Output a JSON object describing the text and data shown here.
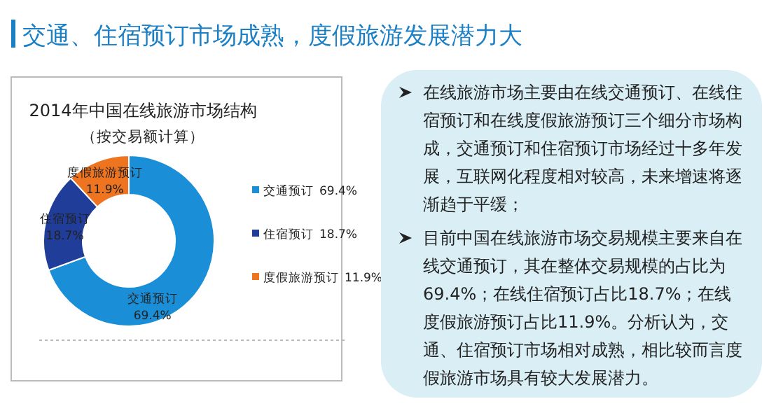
{
  "chart_data": {
    "type": "donut",
    "title": "交通、住宿预订市场成熟，度假旅游发展潜力大",
    "subtitle": "2014年中国在线旅游市场结构",
    "categories": [
      "交通预订",
      "住宿预订",
      "度假旅游预订"
    ],
    "values": [
      69.4,
      18.7,
      11.9
    ],
    "value_labels": [
      "69.4%",
      "18.7%",
      "11.9%"
    ],
    "colors": [
      "#1a8fd8",
      "#1f3d99",
      "#ee7420"
    ],
    "legend": "right",
    "annotations": [
      "（按交易额计算）",
      "在线旅游市场主要由在线交通预订、在线住宿预订和在线度假旅游预订三个细分市场构成，交通预订和住宿预订市场经过十多年发展，互联网化程度相对较高，未来增速将逐渐趋于平缓；",
      "目前中国在线旅游市场交易规模主要来自在线交通预订，其在整体交易规模的占比为69.4%；在线住宿预订占比18.7%；在线度假旅游预订占比11.9%。分析认为，交通、住宿预订市场相对成熟，相比较而言度假旅游市场具有较大发展潜力。"
    ]
  }
}
